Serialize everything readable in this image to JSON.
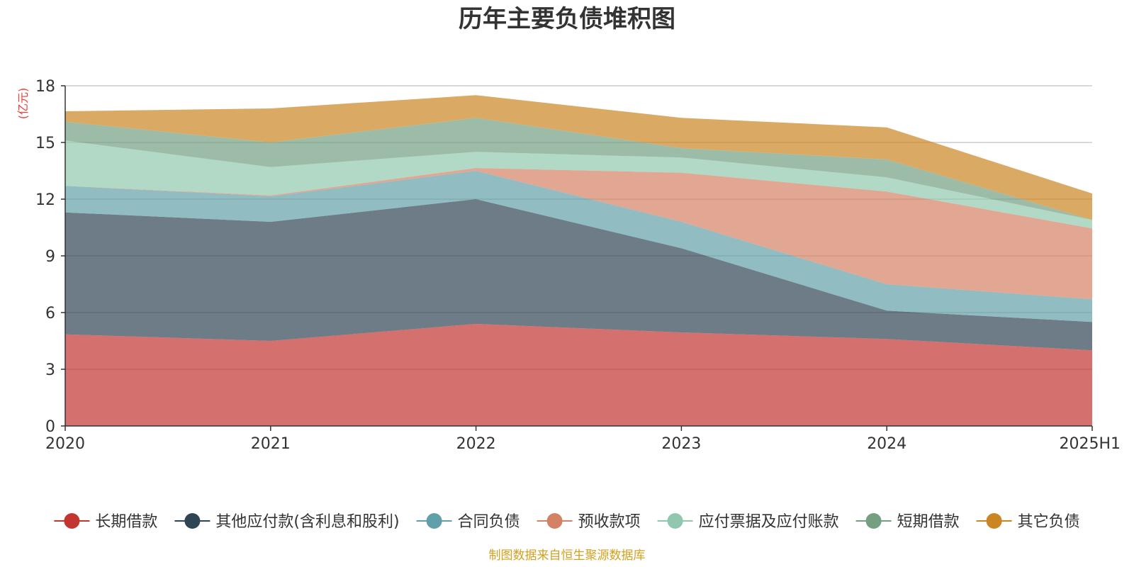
{
  "chart_data": {
    "type": "area",
    "stacked": true,
    "title": "历年主要负债堆积图",
    "ylabel": "(亿元)",
    "source": "制图数据来自恒生聚源数据库",
    "categories": [
      "2020",
      "2021",
      "2022",
      "2023",
      "2024",
      "2025H1"
    ],
    "ylim": [
      0,
      18
    ],
    "yticks": [
      0,
      3,
      6,
      9,
      12,
      15,
      18
    ],
    "grid": true,
    "legend_position": "bottom",
    "series": [
      {
        "name": "长期借款",
        "color": "#c23531",
        "values": [
          4.85,
          4.5,
          5.4,
          4.95,
          4.6,
          4.0
        ]
      },
      {
        "name": "其他应付款(含利息和股利)",
        "color": "#2f4554",
        "values": [
          6.45,
          6.3,
          6.6,
          4.45,
          1.5,
          1.5
        ]
      },
      {
        "name": "合同负债",
        "color": "#61a0a8",
        "values": [
          1.4,
          1.35,
          1.5,
          1.4,
          1.4,
          1.2
        ]
      },
      {
        "name": "预收款项",
        "color": "#d48265",
        "values": [
          0.0,
          0.05,
          0.15,
          2.6,
          4.9,
          3.75
        ]
      },
      {
        "name": "应付票据及应付账款",
        "color": "#91c7ae",
        "values": [
          2.4,
          1.5,
          0.85,
          0.8,
          0.75,
          0.45
        ]
      },
      {
        "name": "短期借款",
        "color": "#749f83",
        "values": [
          1.0,
          1.3,
          1.8,
          0.5,
          0.95,
          0.0
        ]
      },
      {
        "name": "其它负债",
        "color": "#ca8622",
        "values": [
          0.55,
          1.8,
          1.2,
          1.6,
          1.7,
          1.4
        ]
      }
    ]
  }
}
